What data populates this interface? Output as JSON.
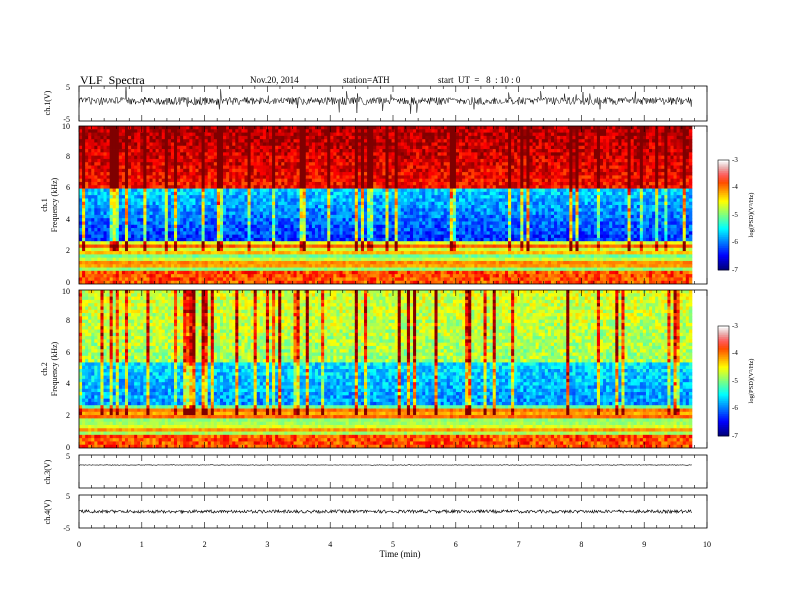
{
  "header": {
    "title": "VLF  Spectra",
    "date": "Nov.20, 2014",
    "station": "station=ATH",
    "start": "start  UT  =   8  : 10 : 0"
  },
  "chart_data": [
    {
      "type": "line",
      "panel": "ch1-waveform",
      "ylabel": "ch.1(V)",
      "ylim": [
        -5,
        5
      ],
      "yticks": [
        "5",
        "-5"
      ]
    },
    {
      "type": "heatmap",
      "panel": "ch1-spectrogram",
      "ylabel_channel": "ch.1",
      "ylabel": "Frequency  (kHz)",
      "ylim": [
        0,
        10
      ],
      "yticks": [
        "0",
        "2",
        "4",
        "6",
        "8",
        "10"
      ],
      "xlim": [
        0,
        10
      ],
      "colorbar": {
        "label": "log(PSD)(V²/Hz)",
        "range": [
          -7,
          -3
        ],
        "ticks": [
          "-3",
          "-4",
          "-5",
          "-6",
          "-7"
        ]
      }
    },
    {
      "type": "heatmap",
      "panel": "ch2-spectrogram",
      "ylabel_channel": "ch.2",
      "ylabel": "Frequency  (kHz)",
      "ylim": [
        0,
        10
      ],
      "yticks": [
        "0",
        "2",
        "4",
        "6",
        "8",
        "10"
      ],
      "xlim": [
        0,
        10
      ],
      "colorbar": {
        "label": "log(PSD)(V²/Hz)",
        "range": [
          -7,
          -3
        ],
        "ticks": [
          "-3",
          "-4",
          "-5",
          "-6",
          "-7"
        ]
      }
    },
    {
      "type": "line",
      "panel": "ch3-waveform",
      "ylabel": "ch.3(V)",
      "ylim": [
        -5,
        5
      ],
      "yticks": [
        "5"
      ]
    },
    {
      "type": "line",
      "panel": "ch4-waveform",
      "ylabel": "ch.4(V)",
      "ylim": [
        -5,
        5
      ],
      "yticks": [
        "5",
        "-5"
      ],
      "xlabel": "Time  (min)",
      "xlim": [
        0,
        10
      ],
      "xticks": [
        "0",
        "1",
        "2",
        "3",
        "4",
        "5",
        "6",
        "7",
        "8",
        "9",
        "10"
      ]
    }
  ],
  "colors": {
    "jet": [
      "#00007f",
      "#0000ff",
      "#007fff",
      "#00ffff",
      "#7fff7f",
      "#ffff00",
      "#ff7f00",
      "#ff0000",
      "#7f0000"
    ],
    "colorbar_top": "#ffffff"
  }
}
